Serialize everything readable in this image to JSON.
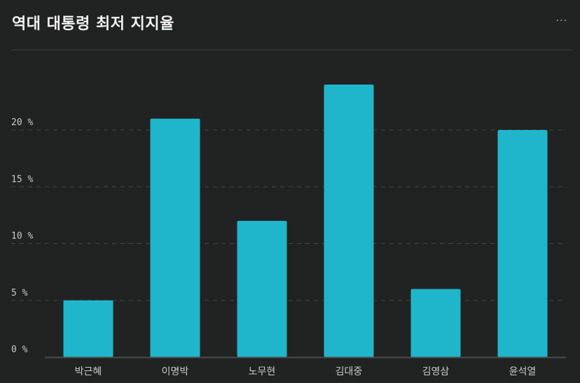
{
  "header": {
    "title": "역대 대통령 최저 지지율",
    "more_label": "···"
  },
  "colors": {
    "background": "#212322",
    "bar": "#1fb6cc",
    "grid": "#444746",
    "axis": "#4a4c4b",
    "text": "#c8c8c8",
    "title": "#f1f1f1"
  },
  "chart_data": {
    "type": "bar",
    "categories": [
      "박근혜",
      "이명박",
      "노무현",
      "김대중",
      "김영삼",
      "윤석열"
    ],
    "values": [
      5,
      21,
      12,
      24,
      6,
      20
    ],
    "y_ticks": [
      0,
      5,
      10,
      15,
      20
    ],
    "y_tick_labels": [
      "0 %",
      "5 %",
      "10 %",
      "15 %",
      "20 %"
    ],
    "ylim": [
      0,
      26
    ],
    "title": "역대 대통령 최저 지지율",
    "xlabel": "",
    "ylabel": "",
    "grid": true,
    "grid_style": "dashed",
    "legend": "none"
  }
}
